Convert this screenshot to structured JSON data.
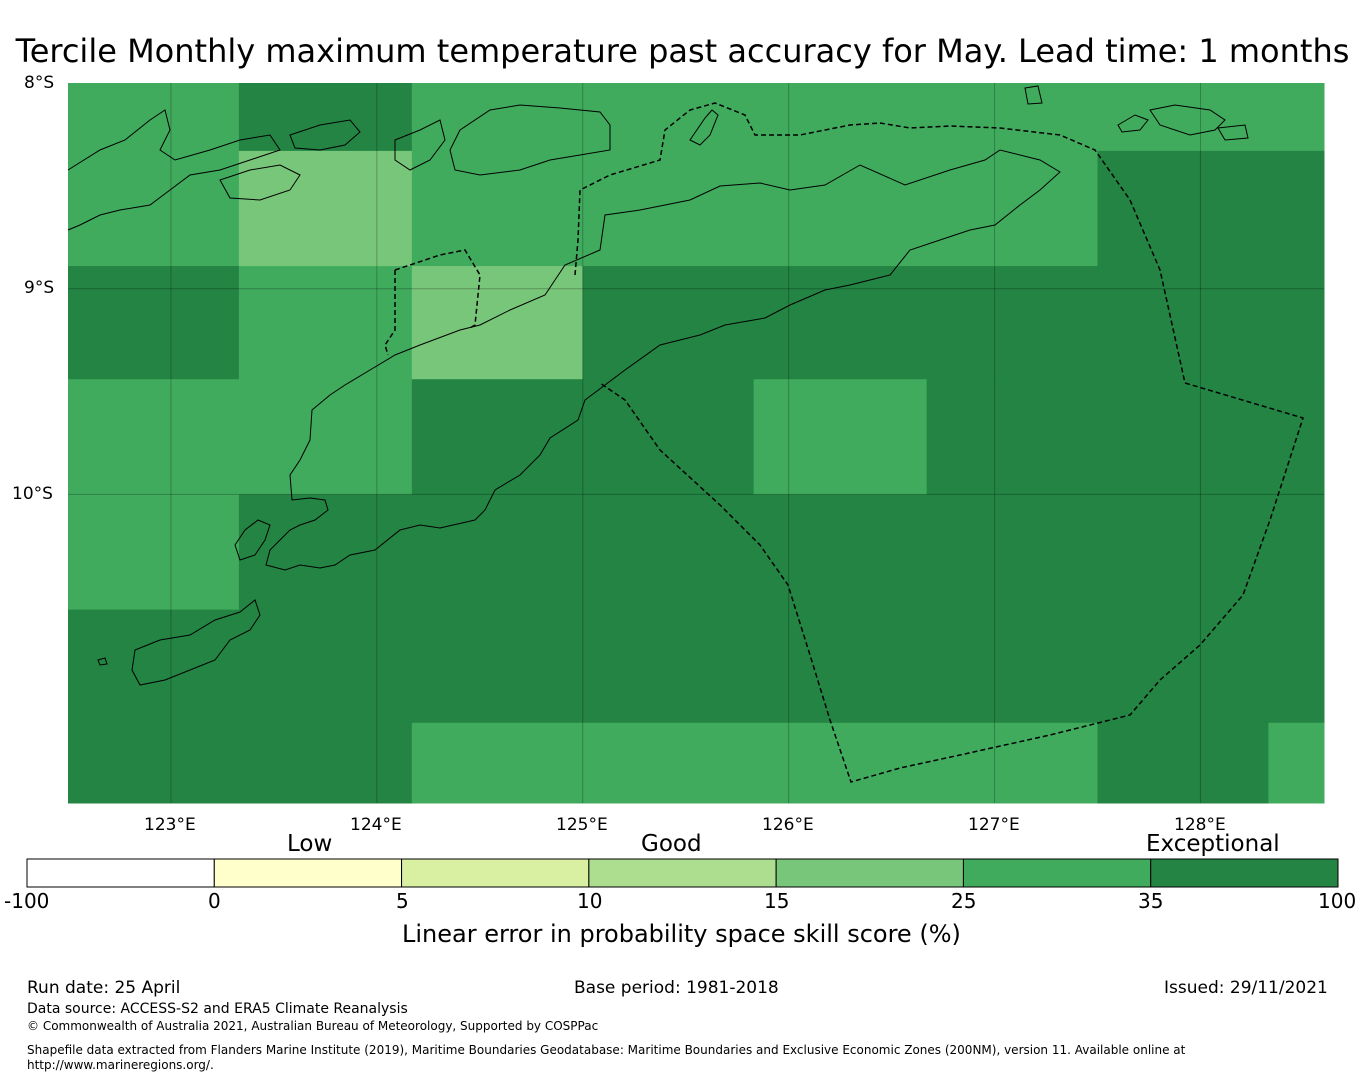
{
  "title": "Tercile Monthly maximum temperature past accuracy for May. Lead time: 1 months",
  "map": {
    "lat_labels": [
      "8°S",
      "9°S",
      "10°S"
    ],
    "lon_labels": [
      "123°E",
      "124°E",
      "125°E",
      "126°E",
      "127°E",
      "128°E"
    ],
    "extent": {
      "lon_min": 122.5,
      "lon_max": 128.6,
      "lat_max": -8.0,
      "lat_min": -11.5
    },
    "cell_size_deg": 0.833,
    "grid_lines": true,
    "skill_grid": {
      "columns_lon_edges": [
        122.5,
        123.33,
        124.17,
        125.0,
        125.83,
        126.67,
        127.5,
        128.33,
        128.6
      ],
      "rows_lat_edges": [
        -8.0,
        -8.33,
        -8.89,
        -9.44,
        -10.0,
        -10.56,
        -11.11,
        -11.5
      ],
      "rows": [
        [
          25,
          35,
          25,
          25,
          25,
          25,
          25,
          25
        ],
        [
          25,
          15,
          25,
          25,
          25,
          25,
          35,
          35
        ],
        [
          35,
          25,
          15,
          35,
          35,
          35,
          35,
          35
        ],
        [
          25,
          25,
          35,
          35,
          25,
          35,
          35,
          35
        ],
        [
          25,
          35,
          35,
          35,
          35,
          35,
          35,
          35
        ],
        [
          35,
          35,
          35,
          35,
          35,
          35,
          35,
          35
        ],
        [
          35,
          35,
          25,
          25,
          25,
          25,
          35,
          25
        ]
      ]
    }
  },
  "colorbar": {
    "categories": [
      "Low",
      "Good",
      "Exceptional"
    ],
    "ticks": [
      "-100",
      "0",
      "5",
      "10",
      "15",
      "25",
      "35",
      "100"
    ],
    "colors": [
      "#ffffff",
      "#ffffcc",
      "#d9f0a3",
      "#addd8e",
      "#78c679",
      "#41ab5d",
      "#238443"
    ],
    "label": "Linear error in probability space skill score (%)"
  },
  "footer": {
    "run_date": "Run date: 25 April",
    "base_period": "Base period: 1981-2018",
    "issued": "Issued: 29/11/2021",
    "data_source": "Data source: ACCESS-S2 and ERA5 Climate Reanalysis",
    "copyright": "© Commonwealth of Australia 2021, Australian Bureau of Meteorology, Supported by COSPPac",
    "shapefile_line1": "Shapefile data extracted from Flanders Marine Institute (2019), Maritime Boundaries Geodatabase: Maritime Boundaries and Exclusive Economic Zones (200NM), version 11. Available online at",
    "shapefile_line2": "http://www.marineregions.org/."
  }
}
